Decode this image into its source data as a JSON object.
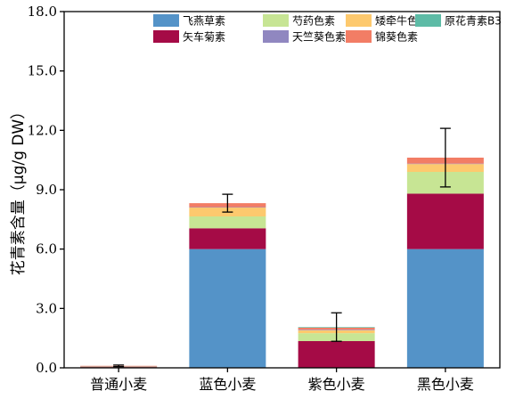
{
  "chart_data": {
    "type": "bar",
    "stacked": true,
    "title": "",
    "xlabel": "",
    "ylabel": "花青素含量（μg/g DW）",
    "ylim": [
      0,
      18
    ],
    "yticks": [
      "0.0",
      "3.0",
      "6.0",
      "9.0",
      "12.0",
      "15.0",
      "18.0"
    ],
    "categories": [
      "普通小麦",
      "蓝色小麦",
      "紫色小麦",
      "黑色小麦"
    ],
    "grid": false,
    "legend_position": "top-right",
    "legend_order": [
      0,
      2,
      3,
      6,
      1,
      4,
      5
    ],
    "series": [
      {
        "name": "飞燕草素",
        "color": "#5493c8",
        "values": [
          0.0,
          6.0,
          0.0,
          6.0
        ]
      },
      {
        "name": "矢车菊素",
        "color": "#a50b46",
        "values": [
          0.04,
          1.05,
          1.35,
          2.8
        ]
      },
      {
        "name": "芍药色素",
        "color": "#c7e594",
        "values": [
          0.02,
          0.6,
          0.4,
          1.1
        ]
      },
      {
        "name": "矮牵牛色素",
        "color": "#fdc96e",
        "values": [
          0.01,
          0.45,
          0.15,
          0.4
        ]
      },
      {
        "name": "天竺葵色素",
        "color": "#9087c0",
        "values": [
          0.01,
          0.02,
          0.03,
          0.02
        ]
      },
      {
        "name": "锦葵色素",
        "color": "#f27d65",
        "values": [
          0.02,
          0.2,
          0.1,
          0.3
        ]
      },
      {
        "name": "原花青素B3",
        "color": "#5dbba6",
        "values": [
          0.0,
          0.0,
          0.03,
          0.0
        ]
      }
    ],
    "error_bars": [
      0.04,
      0.45,
      0.72,
      1.48
    ]
  }
}
